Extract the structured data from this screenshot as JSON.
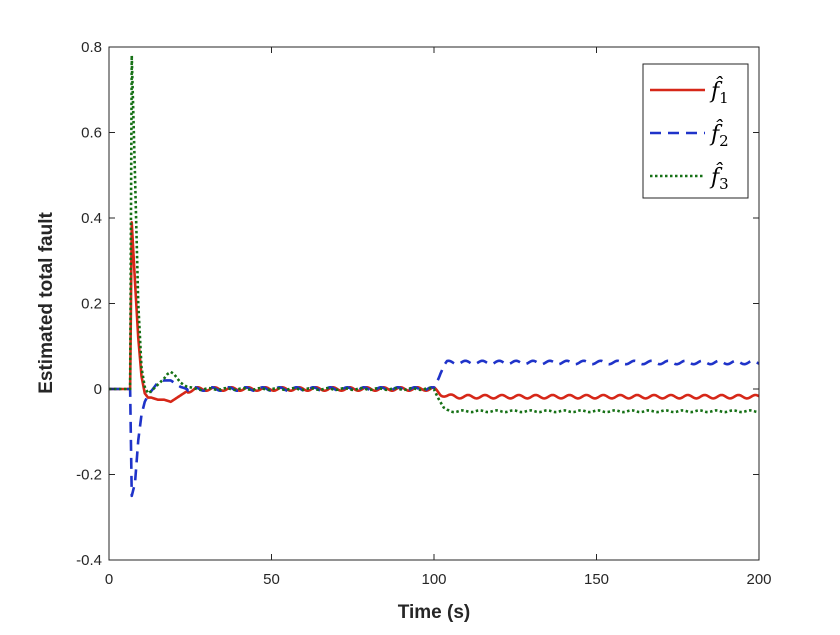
{
  "chart_data": {
    "type": "line",
    "xlabel": "Time (s)",
    "ylabel": "Estimated total fault",
    "xlim": [
      0,
      200
    ],
    "ylim": [
      -0.4,
      0.8
    ],
    "xticks": [
      0,
      50,
      100,
      150,
      200
    ],
    "yticks": [
      -0.4,
      -0.2,
      0,
      0.2,
      0.4,
      0.6,
      0.8
    ],
    "xtick_labels": [
      "0",
      "50",
      "100",
      "150",
      "200"
    ],
    "ytick_labels": [
      "-0.4",
      "-0.2",
      "0",
      "0.2",
      "0.4",
      "0.6",
      "0.8"
    ],
    "grid": false,
    "legend_position": "top-right",
    "series": [
      {
        "name": "f̂1",
        "legend_sub": "1",
        "color": "#d62718",
        "dash": "solid",
        "x": [
          0,
          6.5,
          7,
          8,
          9,
          10,
          11,
          12,
          13,
          15,
          17,
          19,
          20,
          22,
          24,
          27,
          30,
          40,
          50,
          60,
          70,
          80,
          90,
          100,
          101,
          102,
          104,
          107,
          110,
          120,
          130,
          140,
          150,
          160,
          170,
          180,
          190,
          200
        ],
        "values": [
          0,
          0,
          0.39,
          0.25,
          0.12,
          0.03,
          -0.01,
          -0.02,
          -0.02,
          -0.025,
          -0.025,
          -0.03,
          -0.025,
          -0.015,
          -0.005,
          0,
          0,
          0,
          0,
          0,
          0,
          0,
          0,
          0,
          -0.006,
          -0.012,
          -0.016,
          -0.018,
          -0.018,
          -0.018,
          -0.018,
          -0.018,
          -0.018,
          -0.018,
          -0.018,
          -0.018,
          -0.018,
          -0.018
        ],
        "ripple": 0.004
      },
      {
        "name": "f̂2",
        "legend_sub": "2",
        "color": "#1f33c9",
        "dash": "11 7",
        "x": [
          0,
          6.5,
          7,
          8,
          9,
          10,
          11,
          12,
          13,
          14,
          15,
          17,
          19,
          20,
          22,
          24,
          27,
          30,
          40,
          50,
          60,
          70,
          80,
          90,
          100,
          101,
          102,
          103,
          104,
          107,
          110,
          120,
          130,
          140,
          150,
          160,
          170,
          180,
          190,
          200
        ],
        "values": [
          0,
          0,
          -0.25,
          -0.22,
          -0.12,
          -0.06,
          -0.03,
          -0.015,
          -0.005,
          0.005,
          0.015,
          0.02,
          0.02,
          0.015,
          0.005,
          0,
          0,
          0,
          0,
          0,
          0,
          0,
          0,
          0,
          0,
          0.02,
          0.04,
          0.055,
          0.062,
          0.062,
          0.062,
          0.062,
          0.062,
          0.062,
          0.062,
          0.062,
          0.062,
          0.062,
          0.062,
          0.062
        ],
        "ripple": 0.004
      },
      {
        "name": "f̂3",
        "legend_sub": "3",
        "color": "#157015",
        "dash": "2.5 2.5",
        "x": [
          0,
          6.5,
          7,
          8,
          9,
          10,
          11,
          12,
          13,
          15,
          17,
          18,
          19,
          20,
          21,
          22,
          24,
          26,
          30,
          40,
          50,
          60,
          70,
          80,
          90,
          100,
          101,
          102,
          103,
          104,
          105,
          110,
          120,
          130,
          140,
          150,
          160,
          170,
          180,
          190,
          200
        ],
        "values": [
          0,
          0,
          0.78,
          0.5,
          0.2,
          0.05,
          0.005,
          -0.01,
          -0.005,
          0.01,
          0.025,
          0.035,
          0.04,
          0.035,
          0.025,
          0.015,
          0.005,
          0,
          0,
          0,
          0,
          0,
          0,
          0,
          0,
          0,
          -0.015,
          -0.03,
          -0.045,
          -0.05,
          -0.052,
          -0.052,
          -0.052,
          -0.052,
          -0.052,
          -0.052,
          -0.052,
          -0.052,
          -0.052,
          -0.052,
          -0.052
        ],
        "ripple": 0.002
      }
    ]
  }
}
